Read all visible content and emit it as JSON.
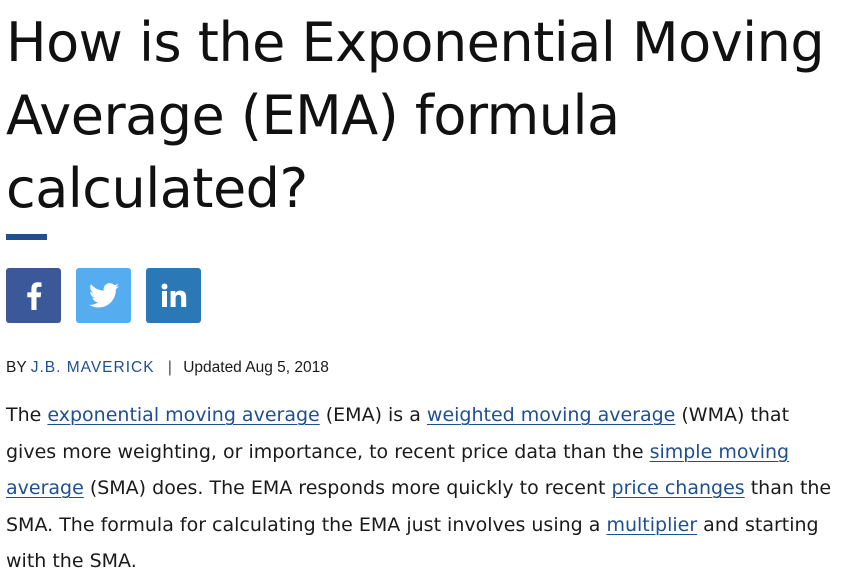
{
  "article": {
    "title": "How is the Exponential Moving Average (EMA) formula calculated?",
    "share": {
      "facebook": {
        "icon": "facebook-icon",
        "color": "#3b5998"
      },
      "twitter": {
        "icon": "twitter-icon",
        "color": "#55acee"
      },
      "linkedin": {
        "icon": "linkedin-icon",
        "color": "#2a78b5"
      }
    },
    "byline": {
      "prefix": "BY",
      "author": "J.B. MAVERICK",
      "separator": "|",
      "updated": "Updated Aug 5, 2018"
    },
    "paragraph": [
      {
        "text": "The "
      },
      {
        "text": "exponential moving average",
        "link": true
      },
      {
        "text": " (EMA) is a "
      },
      {
        "text": "weighted moving average",
        "link": true
      },
      {
        "text": " (WMA) that gives more weighting, or importance, to recent price data than the "
      },
      {
        "text": "simple moving average",
        "link": true
      },
      {
        "text": " (SMA) does. The EMA responds more quickly to recent "
      },
      {
        "text": "price changes",
        "link": true
      },
      {
        "text": " than the SMA. The formula for calculating the EMA just involves using a "
      },
      {
        "text": "multiplier",
        "link": true
      },
      {
        "text": " and starting with the SMA."
      }
    ]
  },
  "colors": {
    "link": "#1f4f8f",
    "accent_rule": "#1f4f8f",
    "text": "#1a1a1a"
  }
}
